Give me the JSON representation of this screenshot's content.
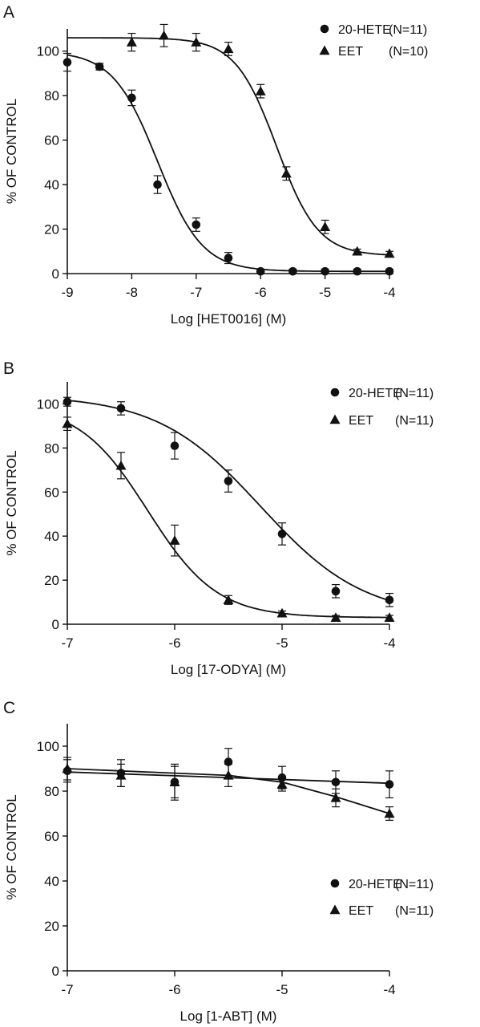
{
  "chart_data": [
    {
      "panel": "A",
      "type": "scatter",
      "xlabel": "Log [HET0016] (M)",
      "ylabel": "% OF CONTROL",
      "xlim": [
        -9,
        -4
      ],
      "ylim": [
        0,
        110
      ],
      "xticks": [
        -9,
        -8,
        -7,
        -6,
        -5,
        -4
      ],
      "yticks": [
        0,
        20,
        40,
        60,
        80,
        100
      ],
      "grid": false,
      "legend_position": "top-right",
      "series": [
        {
          "name": "20-HETE",
          "n_label": "(N=11)",
          "marker": "circle",
          "x": [
            -9,
            -8.5,
            -8,
            -7.6,
            -7,
            -6.5,
            -6,
            -5.5,
            -5,
            -4.5,
            -4
          ],
          "y": [
            95,
            93,
            79,
            40,
            22,
            7,
            1,
            1,
            1,
            1,
            1
          ],
          "err": [
            4,
            1.5,
            3.5,
            4,
            3,
            2.5,
            1,
            1,
            1,
            1,
            1
          ],
          "fit": {
            "top": 100,
            "bottom": 1,
            "log_ic50": -7.6,
            "hill": 1.25
          }
        },
        {
          "name": "EET",
          "n_label": "(N=10)",
          "marker": "triangle",
          "x": [
            -8,
            -7.5,
            -7,
            -6.5,
            -6,
            -5.6,
            -5,
            -4.5,
            -4
          ],
          "y": [
            104,
            107,
            104,
            101,
            82,
            45,
            21,
            10,
            9
          ],
          "err": [
            4,
            5,
            4,
            3,
            3,
            3,
            3,
            1,
            1
          ],
          "fit": {
            "top": 106,
            "bottom": 8,
            "log_ic50": -5.75,
            "hill": 1.35
          }
        }
      ]
    },
    {
      "panel": "B",
      "type": "scatter",
      "xlabel": "Log [17-ODYA] (M)",
      "ylabel": "% OF CONTROL",
      "xlim": [
        -7,
        -4
      ],
      "ylim": [
        0,
        110
      ],
      "xticks": [
        -7,
        -6,
        -5,
        -4
      ],
      "yticks": [
        0,
        20,
        40,
        60,
        80,
        100
      ],
      "grid": false,
      "legend_position": "top-right",
      "series": [
        {
          "name": "20-HETE",
          "n_label": "(N=11)",
          "marker": "circle",
          "x": [
            -7,
            -6.5,
            -6,
            -5.5,
            -5,
            -4.5,
            -4
          ],
          "y": [
            101,
            98,
            81,
            65,
            41,
            15,
            11
          ],
          "err": [
            2,
            3,
            6,
            5,
            5,
            3,
            3
          ],
          "fit": {
            "top": 104,
            "bottom": 3,
            "log_ic50": -5.2,
            "hill": 0.9
          }
        },
        {
          "name": "EET",
          "n_label": "(N=11)",
          "marker": "triangle",
          "x": [
            -7,
            -6.5,
            -6,
            -5.5,
            -5,
            -4.5,
            -4
          ],
          "y": [
            91,
            72,
            38,
            11,
            5,
            3,
            3
          ],
          "err": [
            3,
            6,
            7,
            2,
            1,
            1,
            1
          ],
          "fit": {
            "top": 100,
            "bottom": 3,
            "log_ic50": -6.25,
            "hill": 1.35
          }
        }
      ]
    },
    {
      "panel": "C",
      "type": "scatter",
      "xlabel": "Log [1-ABT] (M)",
      "ylabel": "% OF CONTROL",
      "xlim": [
        -7,
        -4
      ],
      "ylim": [
        0,
        110
      ],
      "xticks": [
        -7,
        -6,
        -5,
        -4
      ],
      "yticks": [
        0,
        20,
        40,
        60,
        80,
        100
      ],
      "grid": false,
      "legend_position": "bottom-right",
      "series": [
        {
          "name": "20-HETE",
          "n_label": "(N=11)",
          "marker": "circle",
          "x": [
            -7,
            -6.5,
            -6,
            -5.5,
            -5,
            -4.5,
            -4
          ],
          "y": [
            89,
            88,
            84,
            93,
            86,
            84,
            83
          ],
          "err": [
            5,
            6,
            7,
            6,
            5,
            5,
            6
          ],
          "fit_line": [
            [
              -7,
              88.5
            ],
            [
              -4,
              83.5
            ]
          ]
        },
        {
          "name": "EET",
          "n_label": "(N=11)",
          "marker": "triangle",
          "x": [
            -7,
            -6.5,
            -6,
            -5.5,
            -5,
            -4.5,
            -4
          ],
          "y": [
            90,
            87,
            84,
            87,
            83,
            77,
            70
          ],
          "err": [
            5,
            5,
            8,
            5,
            3,
            4,
            3
          ],
          "fit_line": [
            [
              -7,
              90
            ],
            [
              -6,
              88
            ],
            [
              -5.5,
              87
            ],
            [
              -5,
              84
            ],
            [
              -4.5,
              77.5
            ],
            [
              -4,
              70
            ]
          ]
        }
      ]
    }
  ]
}
